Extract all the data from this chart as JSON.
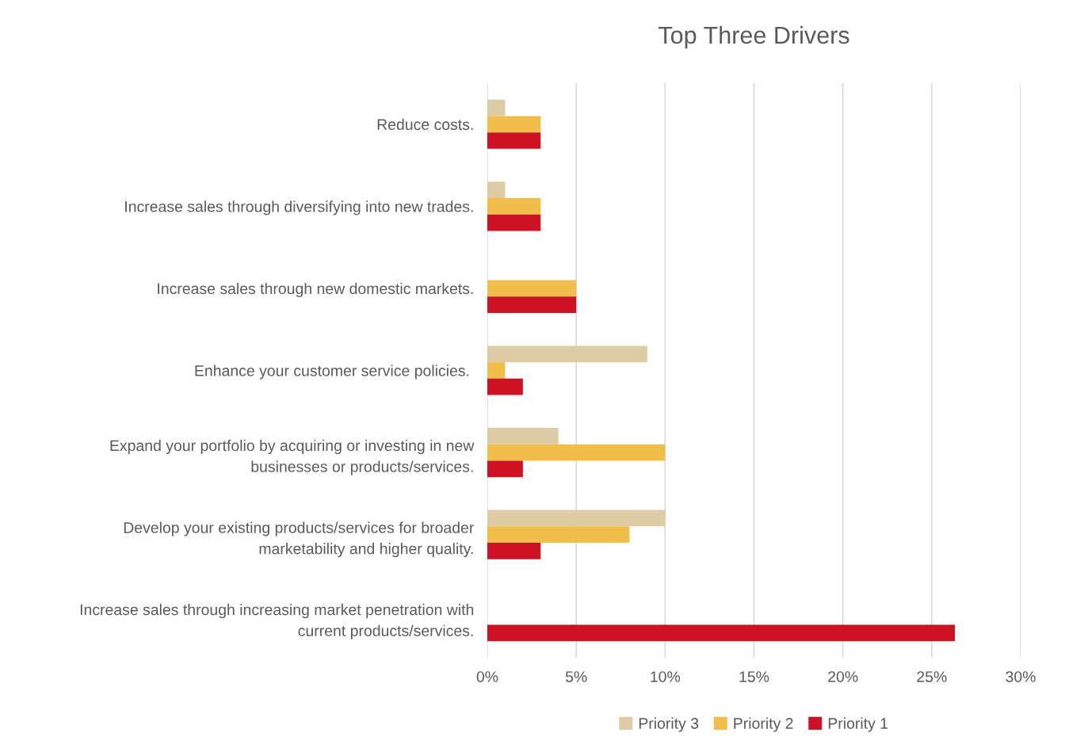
{
  "chart_data": {
    "type": "bar",
    "orientation": "horizontal",
    "title": "Top Three Drivers",
    "categories": [
      "Reduce costs.",
      "Increase sales through diversifying into new trades.",
      "Increase sales through new domestic markets.",
      "Enhance your customer service policies. ",
      "Expand your portfolio by acquiring or investing in new\nbusinesses or products/services.",
      "Develop your existing products/services for broader\nmarketability and higher quality.",
      "Increase sales through increasing market penetration with\ncurrent products/services."
    ],
    "series": [
      {
        "name": "Priority 3",
        "color": "#ddcca5",
        "values": [
          1,
          1,
          0,
          9,
          4,
          10,
          0
        ]
      },
      {
        "name": "Priority 2",
        "color": "#f2be4a",
        "values": [
          3,
          3,
          5,
          1,
          10,
          8,
          0
        ]
      },
      {
        "name": "Priority 1",
        "color": "#cf1126",
        "values": [
          3,
          3,
          5,
          2,
          2,
          3,
          26.3
        ]
      }
    ],
    "xlim": [
      0,
      30
    ],
    "xticks": [
      {
        "value": 0,
        "label": "0%"
      },
      {
        "value": 5,
        "label": "5%"
      },
      {
        "value": 10,
        "label": "10%"
      },
      {
        "value": 15,
        "label": "15%"
      },
      {
        "value": 20,
        "label": "20%"
      },
      {
        "value": 25,
        "label": "25%"
      },
      {
        "value": 30,
        "label": "30%"
      }
    ],
    "grid": "x",
    "legend": "bottom"
  }
}
